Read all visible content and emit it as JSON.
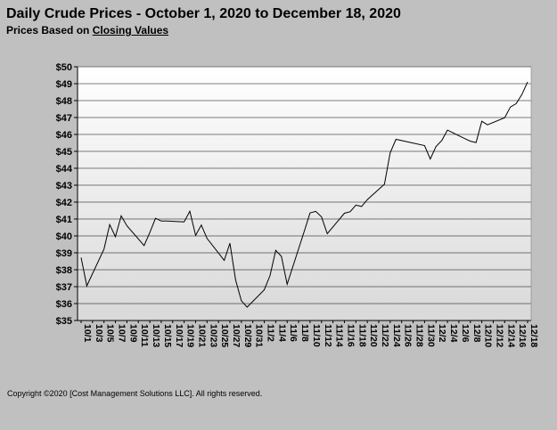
{
  "header": {
    "title": "Daily Crude Prices - October 1, 2020 to December 18, 2020",
    "subtitle_prefix": "Prices Based on ",
    "subtitle_link": "Closing Values"
  },
  "footer": {
    "copyright": "Copyright ©2020 [Cost Management Solutions LLC].  All rights reserved."
  },
  "colors": {
    "page_background": "#c0c0c0",
    "plot_gradient_top": "#ffffff",
    "plot_gradient_bottom": "#d9d9d9",
    "gridline": "#000000",
    "series_line": "#000000"
  },
  "chart_data": {
    "type": "line",
    "title": "Daily Crude Prices - October 1, 2020 to December 18, 2020",
    "subtitle": "Prices Based on Closing Values",
    "xlabel": "",
    "ylabel": "",
    "ylim": [
      35,
      50
    ],
    "grid": true,
    "legend": "none",
    "yticks": [
      "$35",
      "$36",
      "$37",
      "$38",
      "$39",
      "$40",
      "$41",
      "$42",
      "$43",
      "$44",
      "$45",
      "$46",
      "$47",
      "$48",
      "$49",
      "$50"
    ],
    "xticks": [
      "10/1",
      "10/3",
      "10/5",
      "10/7",
      "10/9",
      "10/11",
      "10/13",
      "10/15",
      "10/17",
      "10/19",
      "10/21",
      "10/23",
      "10/25",
      "10/27",
      "10/29",
      "10/31",
      "11/2",
      "11/4",
      "11/6",
      "11/8",
      "11/10",
      "11/12",
      "11/14",
      "11/16",
      "11/18",
      "11/20",
      "11/22",
      "11/24",
      "11/26",
      "11/28",
      "11/30",
      "12/2",
      "12/4",
      "12/6",
      "12/8",
      "12/10",
      "12/12",
      "12/14",
      "12/16",
      "12/18"
    ],
    "series": [
      {
        "x": [
          "10/1",
          "10/2",
          "10/5",
          "10/6",
          "10/7",
          "10/8",
          "10/9",
          "10/12",
          "10/13",
          "10/14",
          "10/15",
          "10/16",
          "10/19",
          "10/20",
          "10/21",
          "10/22",
          "10/23",
          "10/26",
          "10/27",
          "10/28",
          "10/29",
          "10/30",
          "11/2",
          "11/3",
          "11/4",
          "11/5",
          "11/6",
          "11/9",
          "11/10",
          "11/11",
          "11/12",
          "11/13",
          "11/16",
          "11/17",
          "11/18",
          "11/19",
          "11/20",
          "11/23",
          "11/24",
          "11/25",
          "11/30",
          "12/1",
          "12/2",
          "12/3",
          "12/4",
          "12/7",
          "12/8",
          "12/9",
          "12/10",
          "12/11",
          "12/14",
          "12/15",
          "12/16",
          "12/17",
          "12/18"
        ],
        "values": [
          38.72,
          37.05,
          39.22,
          40.67,
          39.95,
          41.19,
          40.6,
          39.43,
          40.2,
          41.04,
          40.88,
          40.88,
          40.83,
          41.46,
          40.03,
          40.64,
          39.85,
          38.56,
          39.57,
          37.39,
          36.17,
          35.79,
          36.81,
          37.66,
          39.15,
          38.79,
          37.14,
          40.29,
          41.36,
          41.45,
          41.12,
          40.13,
          41.34,
          41.43,
          41.82,
          41.74,
          42.15,
          43.06,
          44.91,
          45.71,
          45.34,
          44.55,
          45.28,
          45.64,
          46.26,
          45.76,
          45.6,
          45.52,
          46.78,
          46.57,
          46.99,
          47.62,
          47.82,
          48.36,
          49.1
        ]
      }
    ]
  }
}
